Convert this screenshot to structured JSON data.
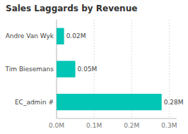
{
  "chart_data": {
    "type": "bar",
    "orientation": "horizontal",
    "title": "Sales Laggards by Revenue",
    "categories": [
      "EC_admin #",
      "Tim Biesemans",
      "Andre Van Wyk"
    ],
    "values": [
      0.28,
      0.05,
      0.02
    ],
    "value_labels": [
      "0.28M",
      "0.05M",
      "0.02M"
    ],
    "data_labels": true,
    "color": "#01C5B5",
    "xlim": [
      0,
      0.32
    ],
    "xticks": [
      {
        "value": 0,
        "label": "0.0M"
      },
      {
        "value": 0.1,
        "label": "0.1M"
      },
      {
        "value": 0.2,
        "label": "0.2M"
      },
      {
        "value": 0.3,
        "label": "0.3M"
      }
    ],
    "grid": true
  }
}
